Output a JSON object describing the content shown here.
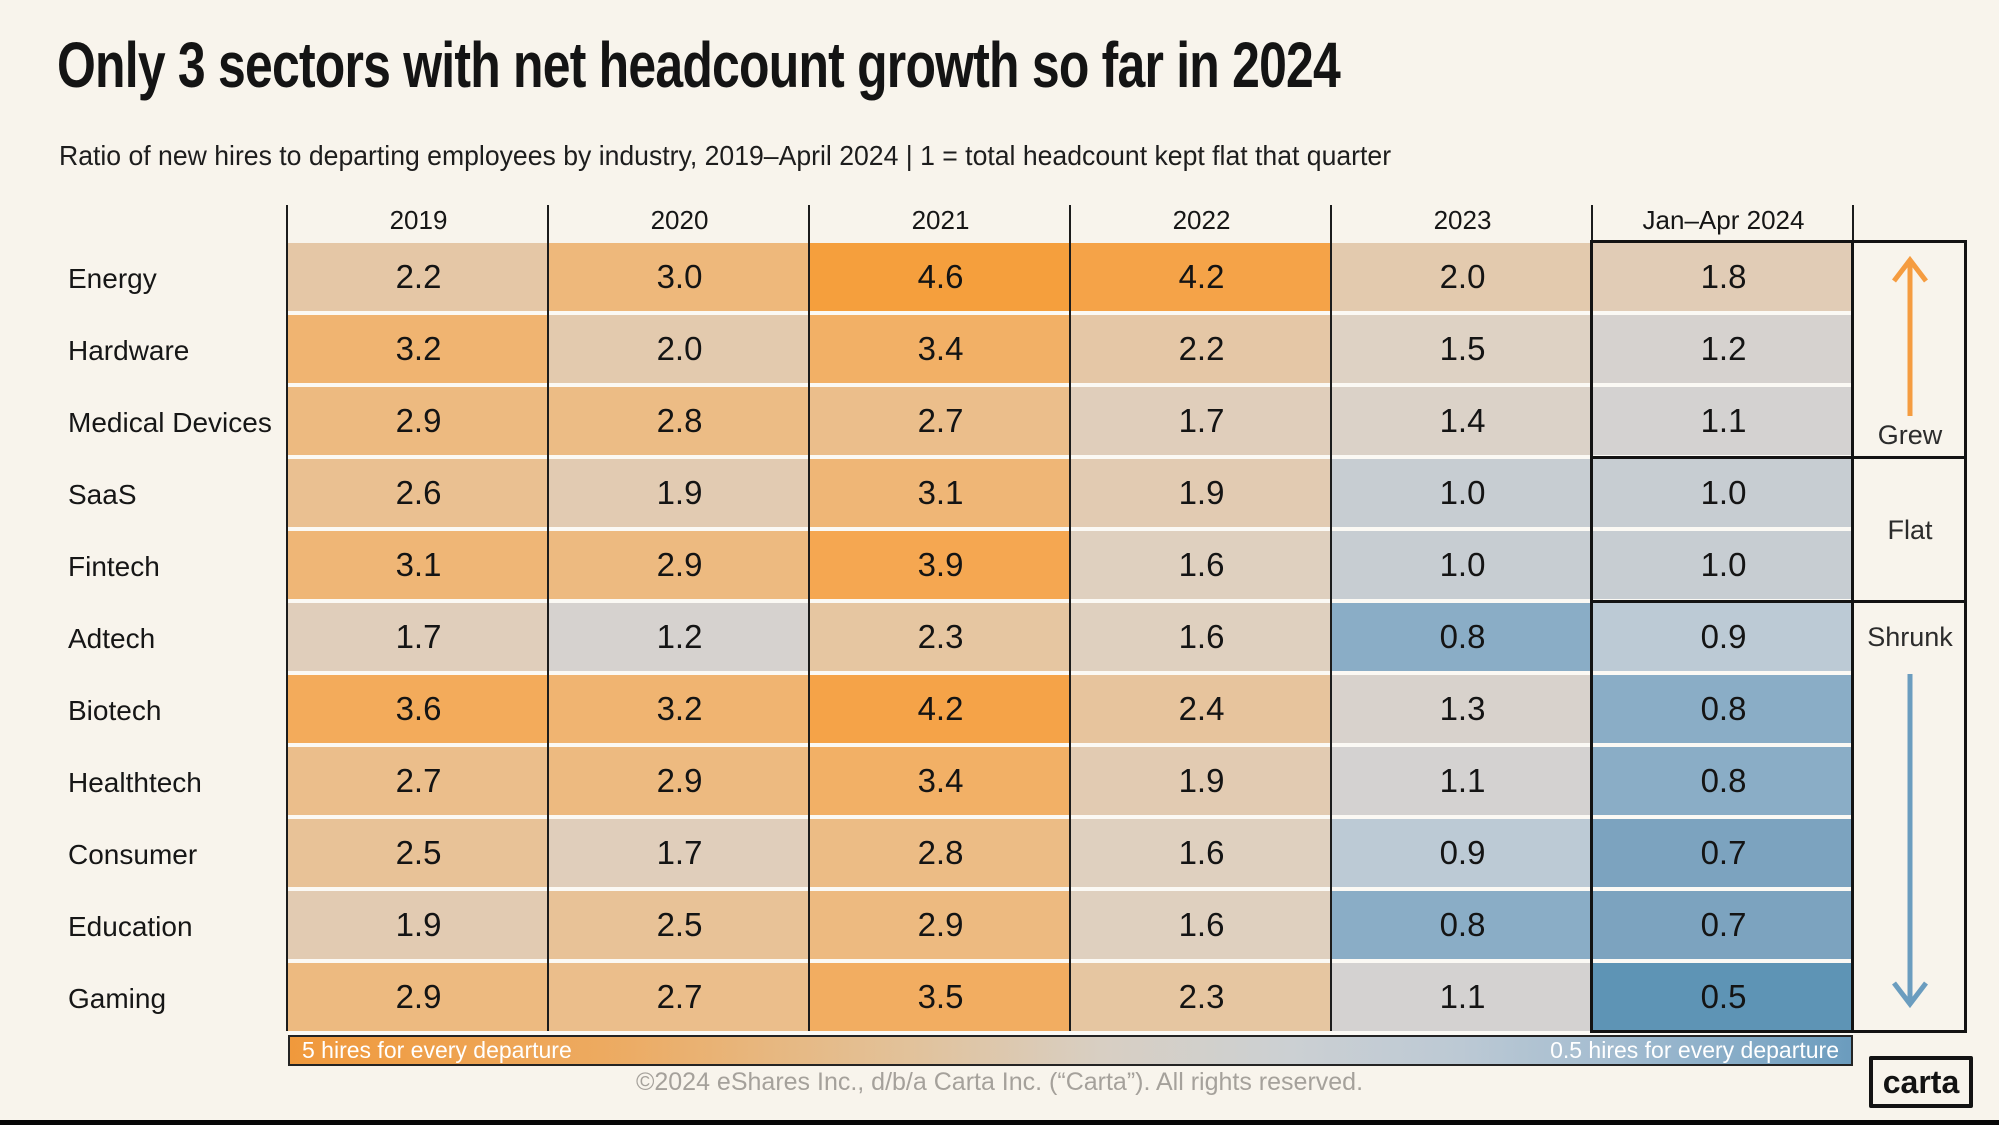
{
  "title": "Only 3 sectors with net headcount growth so far in 2024",
  "subtitle": "Ratio of new hires to departing employees by industry, 2019–April 2024 | 1 = total headcount kept flat that quarter",
  "chart_data": {
    "type": "heatmap",
    "columns": [
      "2019",
      "2020",
      "2021",
      "2022",
      "2023",
      "Jan–Apr 2024"
    ],
    "rows": [
      {
        "label": "Energy",
        "values": [
          2.2,
          3.0,
          4.6,
          4.2,
          2.0,
          1.8
        ]
      },
      {
        "label": "Hardware",
        "values": [
          3.2,
          2.0,
          3.4,
          2.2,
          1.5,
          1.2
        ]
      },
      {
        "label": "Medical Devices",
        "values": [
          2.9,
          2.8,
          2.7,
          1.7,
          1.4,
          1.1
        ]
      },
      {
        "label": "SaaS",
        "values": [
          2.6,
          1.9,
          3.1,
          1.9,
          1.0,
          1.0
        ]
      },
      {
        "label": "Fintech",
        "values": [
          3.1,
          2.9,
          3.9,
          1.6,
          1.0,
          1.0
        ]
      },
      {
        "label": "Adtech",
        "values": [
          1.7,
          1.2,
          2.3,
          1.6,
          0.8,
          0.9
        ]
      },
      {
        "label": "Biotech",
        "values": [
          3.6,
          3.2,
          4.2,
          2.4,
          1.3,
          0.8
        ]
      },
      {
        "label": "Healthtech",
        "values": [
          2.7,
          2.9,
          3.4,
          1.9,
          1.1,
          0.8
        ]
      },
      {
        "label": "Consumer",
        "values": [
          2.5,
          1.7,
          2.8,
          1.6,
          0.9,
          0.7
        ]
      },
      {
        "label": "Education",
        "values": [
          1.9,
          2.5,
          2.9,
          1.6,
          0.8,
          0.7
        ]
      },
      {
        "label": "Gaming",
        "values": [
          2.9,
          2.7,
          3.5,
          2.3,
          1.1,
          0.5
        ]
      }
    ],
    "groups": [
      {
        "label": "Grew",
        "first_row": 0,
        "last_row": 2,
        "arrow": "up",
        "arrow_color": "#f59c40"
      },
      {
        "label": "Flat",
        "first_row": 3,
        "last_row": 4,
        "arrow": null,
        "arrow_color": null
      },
      {
        "label": "Shrunk",
        "first_row": 5,
        "last_row": 10,
        "arrow": "down",
        "arrow_color": "#6b9dbf"
      }
    ],
    "colormap": {
      "stops": [
        [
          0.5,
          "#5e94b5"
        ],
        [
          0.7,
          "#7ca3bf"
        ],
        [
          0.8,
          "#8aadc6"
        ],
        [
          0.9,
          "#bccad5"
        ],
        [
          1.0,
          "#c7cdd2"
        ],
        [
          1.1,
          "#d4d2d1"
        ],
        [
          1.3,
          "#d8d2cc"
        ],
        [
          1.5,
          "#ded2c4"
        ],
        [
          1.8,
          "#e1ccb6"
        ],
        [
          2.0,
          "#e3caae"
        ],
        [
          2.4,
          "#e7c49d"
        ],
        [
          2.8,
          "#ecbc85"
        ],
        [
          3.2,
          "#f0b471"
        ],
        [
          3.6,
          "#f3ab5b"
        ],
        [
          4.0,
          "#f5a54d"
        ],
        [
          4.6,
          "#f59f3d"
        ],
        [
          5.0,
          "#f49a34"
        ]
      ]
    },
    "legend": {
      "left_label": "5 hires for every departure",
      "right_label": "0.5 hires for every departure",
      "gradient": [
        [
          0,
          "#f0993c"
        ],
        [
          0.2,
          "#edaa60"
        ],
        [
          0.38,
          "#e3c095"
        ],
        [
          0.52,
          "#d8cfc3"
        ],
        [
          0.64,
          "#ccd0d3"
        ],
        [
          0.75,
          "#bcc9d4"
        ],
        [
          0.85,
          "#a3bcd0"
        ],
        [
          1,
          "#6b9cbe"
        ]
      ],
      "grid_on": false,
      "value_range_high_to_low": [
        5,
        0.5
      ]
    }
  },
  "footer": {
    "copyright": "©2024 eShares Inc., d/b/a Carta Inc. (“Carta”). All rights reserved.",
    "logo": "carta"
  }
}
